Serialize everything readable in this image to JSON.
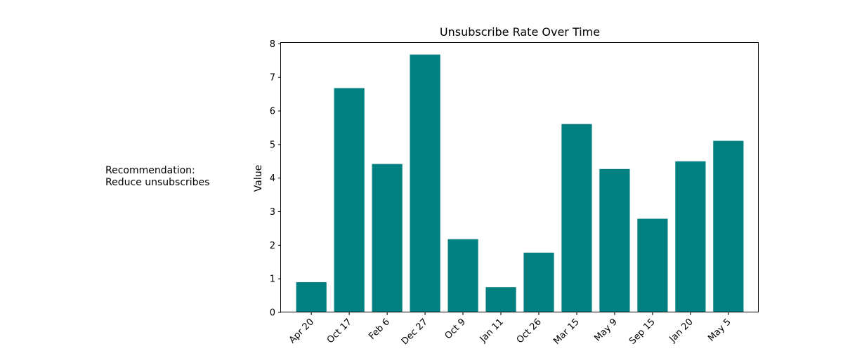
{
  "recommendation": {
    "line1": "Recommendation:",
    "line2": "Reduce unsubscribes"
  },
  "colors": {
    "bar": "#008080",
    "axis": "#000000",
    "background": "#ffffff"
  },
  "chart_data": {
    "type": "bar",
    "title": "Unsubscribe Rate Over Time",
    "xlabel": "",
    "ylabel": "Value",
    "categories": [
      "Apr 20",
      "Oct 17",
      "Feb 6",
      "Dec 27",
      "Oct 9",
      "Jan 11",
      "Oct 26",
      "Mar 15",
      "May 9",
      "Sep 15",
      "Jan 20",
      "May 5"
    ],
    "values": [
      0.9,
      6.68,
      4.42,
      7.68,
      2.18,
      0.75,
      1.78,
      5.61,
      4.27,
      2.79,
      4.5,
      5.11
    ],
    "ylim": [
      0,
      8.05
    ],
    "yticks": [
      0,
      1,
      2,
      3,
      4,
      5,
      6,
      7,
      8
    ],
    "grid": false,
    "legend": "none"
  }
}
